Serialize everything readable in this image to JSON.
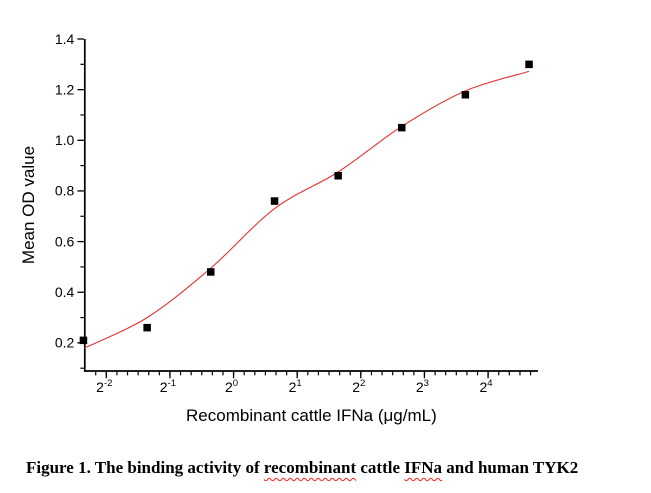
{
  "figure": {
    "caption_segments": [
      {
        "text": "Figure 1. The binding activity of ",
        "misspelled": false
      },
      {
        "text": "recombinant",
        "misspelled": true
      },
      {
        "text": " cattle ",
        "misspelled": false
      },
      {
        "text": "IFNa",
        "misspelled": true
      },
      {
        "text": " and human TYK2",
        "misspelled": false
      }
    ]
  },
  "chart_data": {
    "type": "scatter",
    "title": "",
    "xlabel": "Recombinant cattle IFNa (μg/mL)",
    "ylabel": "Mean OD value",
    "x_scale": "log2",
    "grid": false,
    "legend": false,
    "axis_color": "#000000",
    "x_axis": {
      "base_label": "2",
      "major_exponents": [
        -2,
        -1,
        0,
        1,
        2,
        3,
        4
      ],
      "minor_divisions_per_major": 6,
      "range_log2": [
        -2.338,
        4.785
      ]
    },
    "y_axis": {
      "major_ticks": [
        0.2,
        0.4,
        0.6,
        0.8,
        1.0,
        1.2,
        1.4
      ],
      "tick_labels": [
        "0.2",
        "0.4",
        "0.6",
        "0.8",
        "1.0",
        "1.2",
        "1.4"
      ],
      "minor_ticks": [
        0.1,
        0.3,
        0.5,
        0.7,
        0.9,
        1.1,
        1.3
      ],
      "range": [
        0.089,
        1.4
      ]
    },
    "series": [
      {
        "name": "Mean OD value",
        "marker": "square",
        "marker_color": "#000000",
        "marker_size": 7.5,
        "x": [
          0.195,
          0.39,
          0.78,
          1.5625,
          3.125,
          6.25,
          12.5,
          25
        ],
        "y": [
          0.21,
          0.26,
          0.48,
          0.76,
          0.86,
          1.05,
          1.18,
          1.3
        ]
      }
    ],
    "fit_curve": {
      "name": "sigmoidal fit",
      "color": "#e23333",
      "points": [
        [
          0.197,
          0.18
        ],
        [
          0.39,
          0.3
        ],
        [
          0.78,
          0.495
        ],
        [
          1.5625,
          0.73
        ],
        [
          3.125,
          0.875
        ],
        [
          6.25,
          1.055
        ],
        [
          12.5,
          1.195
        ],
        [
          25.0,
          1.272
        ]
      ]
    }
  }
}
